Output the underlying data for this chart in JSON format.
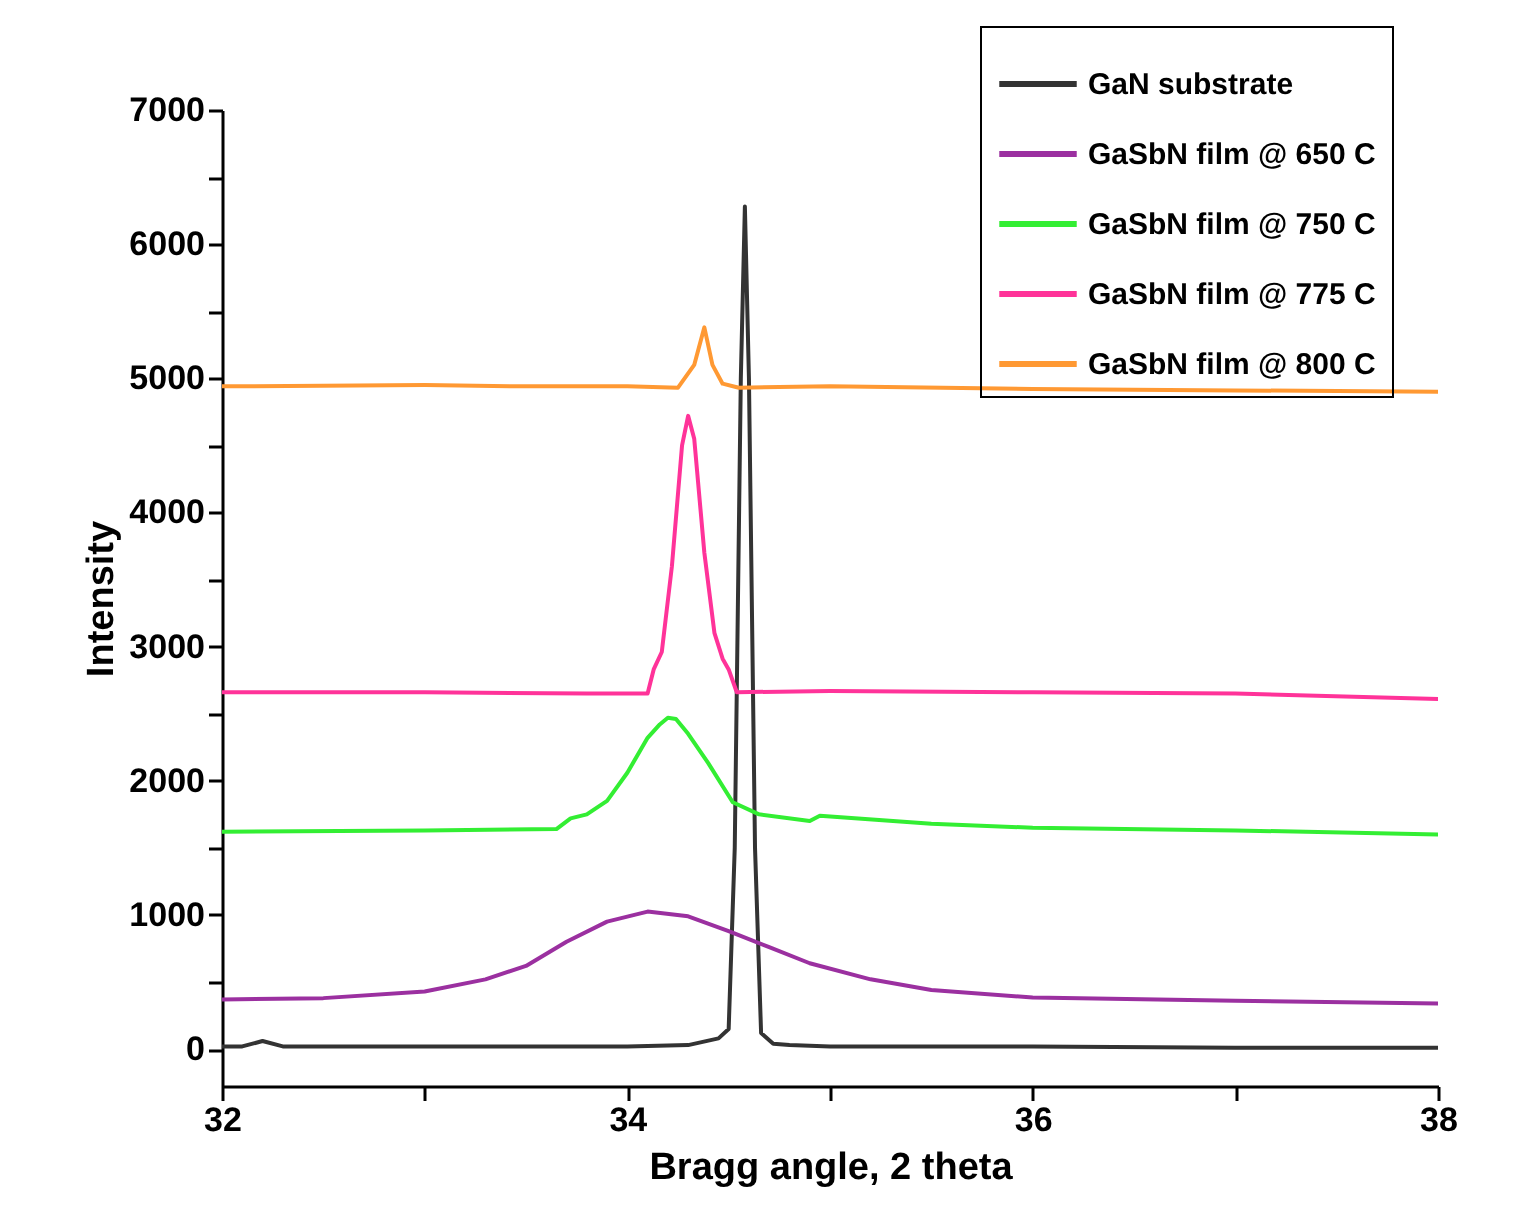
{
  "chart_data": {
    "type": "line",
    "xlabel": "Bragg angle, 2 theta",
    "ylabel": "Intensity",
    "xlim": [
      32,
      38
    ],
    "ylim": [
      -275,
      7000
    ],
    "xticks": [
      32,
      {
        "value": 33,
        "label": null
      },
      34,
      {
        "value": 35,
        "label": null
      },
      36,
      {
        "value": 37,
        "label": null
      },
      38
    ],
    "yticks": [
      0,
      {
        "value": 500,
        "label": null
      },
      1000,
      {
        "value": 1500,
        "label": null
      },
      2000,
      {
        "value": 2500,
        "label": null
      },
      3000,
      {
        "value": 3500,
        "label": null
      },
      4000,
      {
        "value": 4500,
        "label": null
      },
      5000,
      {
        "value": 5500,
        "label": null
      },
      6000,
      {
        "value": 6500,
        "label": null
      },
      7000
    ],
    "legend": "top right",
    "series": [
      {
        "name": "GaN substrate",
        "color": "#333333",
        "x": [
          32,
          32.1,
          32.2,
          32.3,
          32.6,
          33,
          33.5,
          34,
          34.3,
          34.45,
          34.5,
          34.53,
          34.56,
          34.58,
          34.6,
          34.63,
          34.66,
          34.72,
          34.8,
          35,
          35.5,
          36,
          37,
          38
        ],
        "values": [
          20,
          20,
          60,
          20,
          20,
          20,
          20,
          20,
          30,
          80,
          150,
          1500,
          5000,
          6280,
          5000,
          1500,
          120,
          40,
          30,
          20,
          20,
          20,
          10,
          10
        ]
      },
      {
        "name": "GaSbN film @ 650 C",
        "color": "#9b30a0",
        "x": [
          32,
          32.5,
          33,
          33.3,
          33.5,
          33.7,
          33.9,
          34.1,
          34.3,
          34.5,
          34.7,
          34.9,
          35.2,
          35.5,
          36,
          37,
          38
        ],
        "values": [
          370,
          380,
          430,
          520,
          620,
          800,
          950,
          1025,
          990,
          880,
          760,
          640,
          520,
          440,
          385,
          360,
          340
        ]
      },
      {
        "name": "GaSbN film @ 750 C",
        "color": "#33ee33",
        "x": [
          32,
          33,
          33.65,
          33.72,
          33.8,
          33.9,
          34,
          34.1,
          34.16,
          34.2,
          34.24,
          34.3,
          34.4,
          34.52,
          34.65,
          34.9,
          34.95,
          35.5,
          36,
          37,
          38
        ],
        "values": [
          1620,
          1630,
          1640,
          1720,
          1750,
          1850,
          2060,
          2320,
          2420,
          2470,
          2460,
          2350,
          2130,
          1840,
          1750,
          1700,
          1740,
          1680,
          1650,
          1630,
          1600
        ]
      },
      {
        "name": "GaSbN film @ 775 C",
        "color": "#ff3399",
        "x": [
          32,
          33,
          33.8,
          34.1,
          34.13,
          34.17,
          34.22,
          34.27,
          34.3,
          34.33,
          34.38,
          34.43,
          34.47,
          34.5,
          34.54,
          35,
          36,
          37,
          38
        ],
        "values": [
          2660,
          2660,
          2650,
          2650,
          2830,
          2960,
          3600,
          4500,
          4720,
          4550,
          3700,
          3100,
          2910,
          2830,
          2660,
          2670,
          2660,
          2650,
          2610
        ]
      },
      {
        "name": "GaSbN film @ 800 C",
        "color": "#ff9933",
        "x": [
          32,
          33,
          33.5,
          34,
          34.25,
          34.33,
          34.38,
          34.42,
          34.47,
          34.55,
          35,
          36,
          37,
          38
        ],
        "values": [
          4940,
          4950,
          4940,
          4940,
          4930,
          5100,
          5380,
          5100,
          4960,
          4930,
          4940,
          4920,
          4910,
          4900
        ]
      }
    ]
  }
}
